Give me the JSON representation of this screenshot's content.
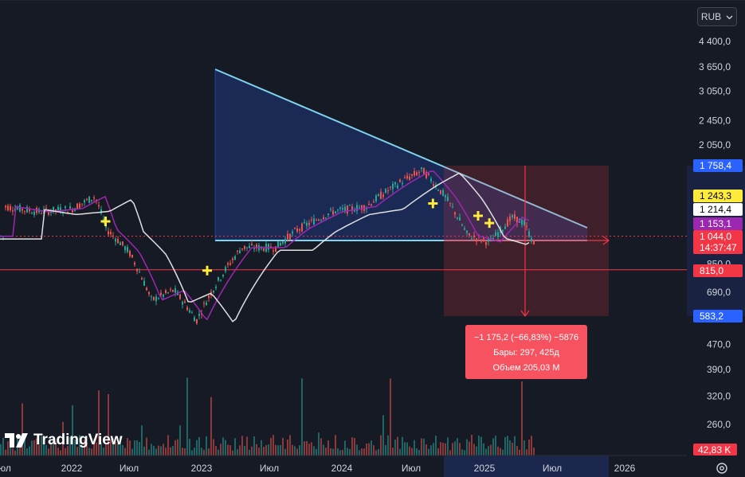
{
  "header": {
    "currency": "RUB"
  },
  "brand": {
    "name": "TradingView"
  },
  "chart_data": {
    "type": "candlestick",
    "price_axis_ticks": [
      "4 400,0",
      "3 650,0",
      "3 050,0",
      "2 450,0",
      "2 050,0",
      "850,0",
      "690,0",
      "470,0",
      "390,0",
      "320,0",
      "260,0"
    ],
    "time_axis_ticks": [
      "юл",
      "2022",
      "Июл",
      "2023",
      "Июл",
      "2024",
      "Июл",
      "2025",
      "Июл",
      "2026"
    ],
    "price_badges": [
      {
        "label": "1 758,4",
        "color": "#2962ff",
        "text_color": "#ffffff"
      },
      {
        "label": "1 243,3",
        "color": "#ffeb3b",
        "text_color": "#000000"
      },
      {
        "label": "1 214,4",
        "color": "#ffffff",
        "text_color": "#000000"
      },
      {
        "label": "1 153,1",
        "color": "#9c27b0",
        "text_color": "#ffffff"
      },
      {
        "label": "1 044,0",
        "color": "#f23645",
        "text_color": "#ffffff",
        "sub": "14:37:47"
      },
      {
        "label": "815,0",
        "color": "#f23645",
        "text_color": "#ffffff"
      },
      {
        "label": "583,2",
        "color": "#2962ff",
        "text_color": "#ffffff"
      }
    ],
    "volume_badge": "42,83 K",
    "measure": {
      "change": "−1 175,2 (−66,83%) −5876",
      "bars": "Бары: 297, 425д",
      "volume": "Объем 205,03 M"
    },
    "series": [
      {
        "name": "price",
        "color": "#26a69a",
        "down_color": "#ef5350"
      },
      {
        "name": "ma_fast",
        "color": "#9c27b0"
      },
      {
        "name": "ma_slow",
        "color": "#e0e0e0"
      }
    ],
    "levels": [
      {
        "value": 815.0,
        "color": "#f23645"
      },
      {
        "value": 1044.0,
        "color": "#f23645",
        "style": "dotted"
      }
    ],
    "crosses": [
      {
        "date": "2022-04",
        "price": 1165
      },
      {
        "date": "2023-01",
        "price": 810
      },
      {
        "date": "2024-09",
        "price": 1330
      },
      {
        "date": "2025-01",
        "price": 1214
      },
      {
        "date": "2025-02",
        "price": 1150
      }
    ]
  }
}
